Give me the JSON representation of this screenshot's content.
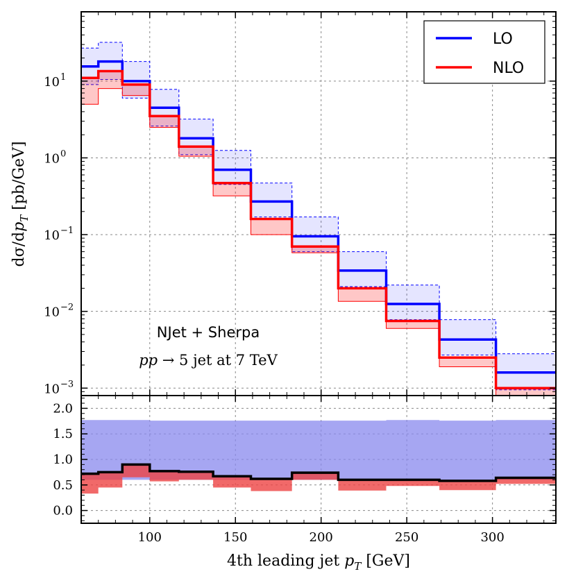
{
  "chart_data": [
    {
      "type": "line",
      "panel": "main",
      "yscale": "log",
      "ylabel": "dσ/dp_T [pb/GeV]",
      "xlim": [
        60,
        337
      ],
      "ylim": [
        0.0008,
        80
      ],
      "yticks": [
        {
          "value": 10,
          "base": "10",
          "exp": "1"
        },
        {
          "value": 1,
          "base": "10",
          "exp": "0"
        },
        {
          "value": 0.1,
          "base": "10",
          "exp": "−1"
        },
        {
          "value": 0.01,
          "base": "10",
          "exp": "−2"
        },
        {
          "value": 0.001,
          "base": "10",
          "exp": "−3"
        }
      ],
      "bin_edges": [
        60,
        70,
        84,
        100,
        117,
        137,
        159,
        183,
        210,
        238,
        269,
        302,
        337
      ],
      "series": [
        {
          "name": "LO",
          "color": "#0000ff",
          "values": [
            15.5,
            18.0,
            10.0,
            4.5,
            1.8,
            0.7,
            0.27,
            0.095,
            0.034,
            0.0125,
            0.0043,
            0.0016
          ],
          "band_low": [
            9.0,
            10.5,
            6.0,
            2.6,
            1.1,
            0.45,
            0.17,
            0.06,
            0.021,
            0.0078,
            0.0027,
            0.00095
          ],
          "band_high": [
            27.0,
            32.0,
            18.0,
            7.8,
            3.2,
            1.25,
            0.47,
            0.17,
            0.06,
            0.022,
            0.0078,
            0.0028
          ]
        },
        {
          "name": "NLO",
          "color": "#ff0000",
          "values": [
            11.0,
            13.5,
            9.0,
            3.5,
            1.4,
            0.47,
            0.16,
            0.07,
            0.02,
            0.0075,
            0.0025,
            0.001
          ],
          "band_low": [
            5.0,
            8.0,
            6.5,
            2.5,
            1.05,
            0.32,
            0.1,
            0.058,
            0.0135,
            0.006,
            0.0019,
            0.0008
          ],
          "band_high": [
            11.0,
            13.5,
            9.0,
            3.5,
            1.4,
            0.47,
            0.16,
            0.07,
            0.02,
            0.0075,
            0.0025,
            0.001
          ]
        }
      ],
      "legend": {
        "position": "top-right",
        "entries": [
          "LO",
          "NLO"
        ]
      },
      "annotation": {
        "line1": "NJet + Sherpa",
        "line2_process": "pp → 5 jet at 7 TeV"
      },
      "grid": true
    },
    {
      "type": "line",
      "panel": "ratio",
      "xlabel": "4th leading jet p_T [GeV]",
      "xlim": [
        60,
        337
      ],
      "ylim": [
        -0.25,
        2.25
      ],
      "xticks": [
        100,
        150,
        200,
        250,
        300
      ],
      "xtick_labels": [
        "100",
        "150",
        "200",
        "250",
        "300"
      ],
      "yticks": [
        0.0,
        0.5,
        1.0,
        1.5,
        2.0
      ],
      "ytick_labels": [
        "0.0",
        "0.5",
        "1.0",
        "1.5",
        "2.0"
      ],
      "bin_edges": [
        60,
        70,
        84,
        100,
        117,
        137,
        159,
        183,
        210,
        238,
        269,
        302,
        337
      ],
      "lo_band": {
        "color": "#8888ee",
        "low": [
          0.6,
          0.6,
          0.6,
          0.6,
          0.6,
          0.6,
          0.6,
          0.6,
          0.6,
          0.6,
          0.6,
          0.6
        ],
        "high": [
          1.77,
          1.77,
          1.77,
          1.76,
          1.76,
          1.76,
          1.76,
          1.76,
          1.76,
          1.77,
          1.76,
          1.77
        ]
      },
      "nlo_ratio": {
        "color": "#000000",
        "values": [
          0.72,
          0.75,
          0.9,
          0.77,
          0.76,
          0.67,
          0.62,
          0.74,
          0.6,
          0.6,
          0.58,
          0.64
        ]
      },
      "nlo_band": {
        "color": "#ee4444",
        "low": [
          0.33,
          0.45,
          0.65,
          0.57,
          0.6,
          0.45,
          0.38,
          0.6,
          0.39,
          0.48,
          0.4,
          0.52
        ],
        "high": [
          0.72,
          0.75,
          0.9,
          0.77,
          0.76,
          0.67,
          0.62,
          0.74,
          0.6,
          0.6,
          0.58,
          0.64
        ]
      },
      "grid": true
    }
  ]
}
